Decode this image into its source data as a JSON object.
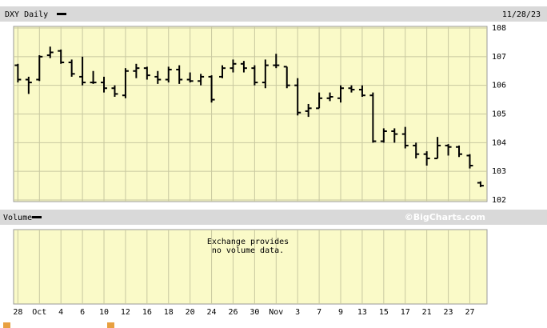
{
  "chart_data": {
    "type": "ohlc",
    "date": "11/28/23",
    "categories": [
      "28",
      null,
      "Oct",
      null,
      "4",
      null,
      "6",
      null,
      "10",
      null,
      "12",
      null,
      "16",
      null,
      "18",
      null,
      "20",
      null,
      "24",
      null,
      "26",
      null,
      "30",
      null,
      "Nov",
      null,
      "3",
      null,
      "7",
      null,
      "9",
      null,
      "13",
      null,
      "15",
      null,
      "17",
      null,
      "21",
      null,
      "23",
      null,
      "27",
      null
    ],
    "series": [
      {
        "name": "DXY Daily",
        "color": "#000000",
        "open": [
          106.7,
          106.2,
          106.2,
          107.05,
          107.2,
          106.8,
          106.3,
          106.1,
          106.1,
          105.9,
          105.65,
          106.5,
          106.6,
          106.3,
          106.2,
          106.55,
          106.2,
          106.15,
          106.3,
          106.3,
          106.6,
          106.75,
          106.6,
          106.1,
          106.7,
          106.65,
          106.0,
          105.1,
          105.2,
          105.55,
          105.55,
          105.9,
          105.85,
          105.65,
          104.05,
          104.4,
          104.3,
          103.9,
          103.6,
          103.45,
          103.9,
          103.85,
          103.55,
          102.6
        ],
        "high": [
          106.75,
          106.3,
          107.05,
          107.35,
          107.25,
          106.9,
          107.0,
          106.5,
          106.3,
          106.0,
          106.6,
          106.75,
          106.65,
          106.5,
          106.65,
          106.7,
          106.45,
          106.4,
          106.35,
          106.7,
          106.9,
          106.85,
          106.7,
          106.9,
          107.1,
          106.65,
          106.25,
          105.35,
          105.75,
          105.75,
          106.0,
          106.0,
          106.0,
          105.75,
          104.5,
          104.5,
          104.55,
          104.0,
          103.7,
          104.2,
          103.95,
          103.9,
          103.6,
          102.65
        ],
        "low": [
          106.1,
          105.7,
          106.15,
          106.95,
          106.75,
          106.3,
          106.0,
          106.05,
          105.75,
          105.6,
          105.55,
          106.25,
          106.2,
          106.05,
          106.1,
          106.05,
          106.1,
          106.0,
          105.4,
          106.25,
          106.45,
          106.45,
          106.0,
          105.9,
          106.6,
          105.9,
          104.95,
          104.9,
          105.2,
          105.45,
          105.4,
          105.75,
          105.6,
          104.0,
          104.0,
          104.0,
          103.8,
          103.45,
          103.2,
          103.45,
          103.55,
          103.5,
          103.1,
          102.45
        ],
        "close": [
          106.2,
          106.1,
          107.0,
          107.15,
          106.8,
          106.4,
          106.1,
          106.1,
          105.9,
          105.7,
          106.5,
          106.6,
          106.35,
          106.2,
          106.55,
          106.2,
          106.15,
          106.3,
          105.5,
          106.6,
          106.75,
          106.6,
          106.1,
          106.7,
          106.7,
          106.0,
          105.05,
          105.2,
          105.55,
          105.6,
          105.9,
          105.85,
          105.65,
          104.05,
          104.4,
          104.3,
          103.9,
          103.6,
          103.45,
          103.9,
          103.85,
          103.6,
          103.2,
          102.5
        ]
      }
    ],
    "ylim": [
      102,
      108
    ],
    "yticks": [
      102,
      103,
      104,
      105,
      106,
      107,
      108
    ],
    "grid": true,
    "volume": {
      "title": "Volume",
      "credit": "©BigCharts.com",
      "note": [
        "Exchange provides",
        "no volume data."
      ]
    }
  }
}
